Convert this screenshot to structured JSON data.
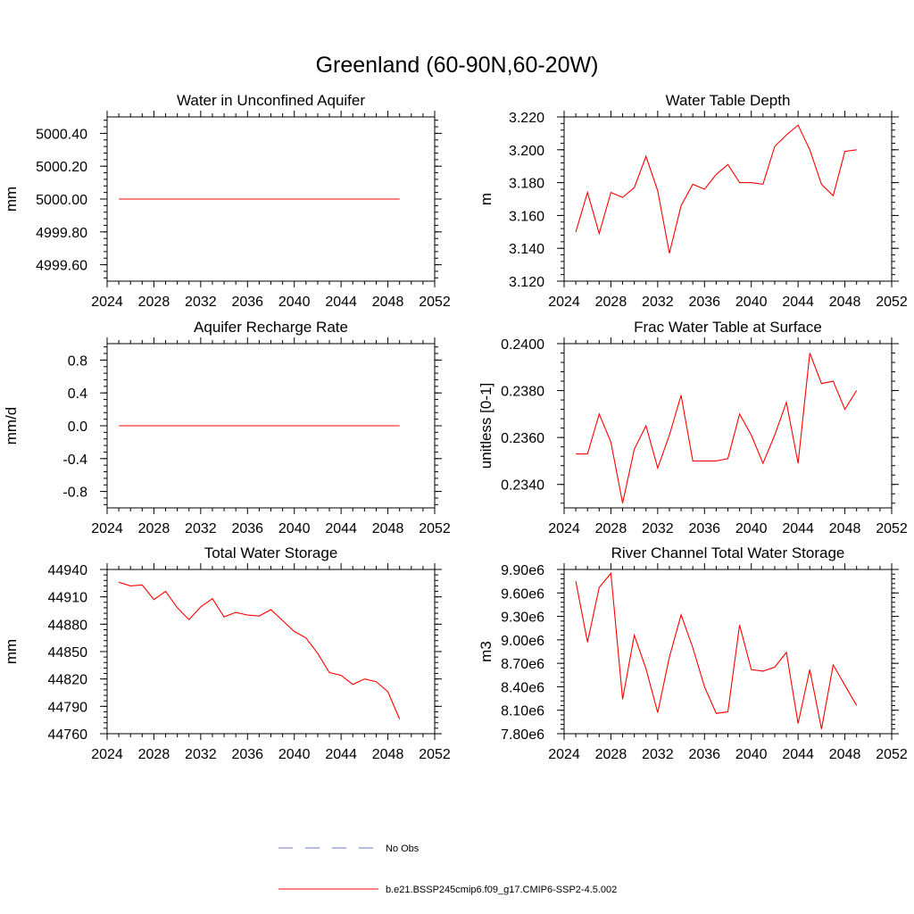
{
  "page": {
    "title": "Greenland (60-90N,60-20W)"
  },
  "colors": {
    "model": "#ff0000",
    "obs": "#6a7bd0",
    "axis": "#000000"
  },
  "chart_data": [
    {
      "id": "aquifer-water",
      "type": "line",
      "title": "Water in Unconfined Aquifer",
      "ylabel": "mm",
      "xlim": [
        2024,
        2052
      ],
      "ylim": [
        4999.5,
        5000.5
      ],
      "x_ticks": [
        "2024",
        "2028",
        "2032",
        "2036",
        "2040",
        "2044",
        "2048",
        "2052"
      ],
      "y_ticks": [
        4999.6,
        4999.8,
        5000.0,
        5000.2,
        5000.4
      ],
      "y_tick_labels": [
        "4999.60",
        "4999.80",
        "5000.00",
        "5000.20",
        "5000.40"
      ],
      "series": [
        {
          "name": "b.e21.BSSP245cmip6.f09_g17.CMIP6-SSP2-4.5.002",
          "x": [
            2025,
            2026,
            2027,
            2028,
            2029,
            2030,
            2031,
            2032,
            2033,
            2034,
            2035,
            2036,
            2037,
            2038,
            2039,
            2040,
            2041,
            2042,
            2043,
            2044,
            2045,
            2046,
            2047,
            2048,
            2049
          ],
          "y": [
            5000,
            5000,
            5000,
            5000,
            5000,
            5000,
            5000,
            5000,
            5000,
            5000,
            5000,
            5000,
            5000,
            5000,
            5000,
            5000,
            5000,
            5000,
            5000,
            5000,
            5000,
            5000,
            5000,
            5000,
            5000
          ]
        }
      ]
    },
    {
      "id": "water-table-depth",
      "type": "line",
      "title": "Water Table Depth",
      "ylabel": "m",
      "xlim": [
        2024,
        2052
      ],
      "ylim": [
        3.12,
        3.22
      ],
      "x_ticks": [
        "2024",
        "2028",
        "2032",
        "2036",
        "2040",
        "2044",
        "2048",
        "2052"
      ],
      "y_ticks": [
        3.12,
        3.14,
        3.16,
        3.18,
        3.2,
        3.22
      ],
      "y_tick_labels": [
        "3.120",
        "3.140",
        "3.160",
        "3.180",
        "3.200",
        "3.220"
      ],
      "series": [
        {
          "name": "b.e21.BSSP245cmip6.f09_g17.CMIP6-SSP2-4.5.002",
          "x": [
            2025,
            2026,
            2027,
            2028,
            2029,
            2030,
            2031,
            2032,
            2033,
            2034,
            2035,
            2036,
            2037,
            2038,
            2039,
            2040,
            2041,
            2042,
            2043,
            2044,
            2045,
            2046,
            2047,
            2048,
            2049
          ],
          "y": [
            3.15,
            3.174,
            3.149,
            3.174,
            3.171,
            3.177,
            3.196,
            3.175,
            3.137,
            3.166,
            3.179,
            3.176,
            3.185,
            3.191,
            3.18,
            3.18,
            3.179,
            3.202,
            3.209,
            3.215,
            3.2,
            3.179,
            3.172,
            3.199,
            3.2
          ]
        }
      ]
    },
    {
      "id": "aquifer-recharge",
      "type": "line",
      "title": "Aquifer Recharge Rate",
      "ylabel": "mm/d",
      "xlim": [
        2024,
        2052
      ],
      "ylim": [
        -1.0,
        1.0
      ],
      "x_ticks": [
        "2024",
        "2028",
        "2032",
        "2036",
        "2040",
        "2044",
        "2048",
        "2052"
      ],
      "y_ticks": [
        -0.8,
        -0.4,
        0.0,
        0.4,
        0.8
      ],
      "y_tick_labels": [
        "-0.8",
        "-0.4",
        "0.0",
        "0.4",
        "0.8"
      ],
      "series": [
        {
          "name": "b.e21.BSSP245cmip6.f09_g17.CMIP6-SSP2-4.5.002",
          "x": [
            2025,
            2026,
            2027,
            2028,
            2029,
            2030,
            2031,
            2032,
            2033,
            2034,
            2035,
            2036,
            2037,
            2038,
            2039,
            2040,
            2041,
            2042,
            2043,
            2044,
            2045,
            2046,
            2047,
            2048,
            2049
          ],
          "y": [
            0,
            0,
            0,
            0,
            0,
            0,
            0,
            0,
            0,
            0,
            0,
            0,
            0,
            0,
            0,
            0,
            0,
            0,
            0,
            0,
            0,
            0,
            0,
            0,
            0
          ]
        }
      ]
    },
    {
      "id": "frac-water-table",
      "type": "line",
      "title": "Frac Water Table at Surface",
      "ylabel": "unitless [0-1]",
      "xlim": [
        2024,
        2052
      ],
      "ylim": [
        0.233,
        0.24
      ],
      "x_ticks": [
        "2024",
        "2028",
        "2032",
        "2036",
        "2040",
        "2044",
        "2048",
        "2052"
      ],
      "y_ticks": [
        0.234,
        0.236,
        0.238,
        0.24
      ],
      "y_tick_labels": [
        "0.2340",
        "0.2360",
        "0.2380",
        "0.2400"
      ],
      "series": [
        {
          "name": "b.e21.BSSP245cmip6.f09_g17.CMIP6-SSP2-4.5.002",
          "x": [
            2025,
            2026,
            2027,
            2028,
            2029,
            2030,
            2031,
            2032,
            2033,
            2034,
            2035,
            2036,
            2037,
            2038,
            2039,
            2040,
            2041,
            2042,
            2043,
            2044,
            2045,
            2046,
            2047,
            2048,
            2049
          ],
          "y": [
            0.2353,
            0.2353,
            0.237,
            0.2358,
            0.2332,
            0.2355,
            0.2365,
            0.2347,
            0.2361,
            0.2378,
            0.235,
            0.235,
            0.235,
            0.2351,
            0.237,
            0.2361,
            0.2349,
            0.2361,
            0.2375,
            0.2349,
            0.2396,
            0.2383,
            0.2384,
            0.2372,
            0.238
          ]
        }
      ]
    },
    {
      "id": "total-water-storage",
      "type": "line",
      "title": "Total Water Storage",
      "ylabel": "mm",
      "xlim": [
        2024,
        2052
      ],
      "ylim": [
        44760,
        44940
      ],
      "x_ticks": [
        "2024",
        "2028",
        "2032",
        "2036",
        "2040",
        "2044",
        "2048",
        "2052"
      ],
      "y_ticks": [
        44760,
        44790,
        44820,
        44850,
        44880,
        44910,
        44940
      ],
      "y_tick_labels": [
        "44760",
        "44790",
        "44820",
        "44850",
        "44880",
        "44910",
        "44940"
      ],
      "series": [
        {
          "name": "b.e21.BSSP245cmip6.f09_g17.CMIP6-SSP2-4.5.002",
          "x": [
            2025,
            2026,
            2027,
            2028,
            2029,
            2030,
            2031,
            2032,
            2033,
            2034,
            2035,
            2036,
            2037,
            2038,
            2039,
            2040,
            2041,
            2042,
            2043,
            2044,
            2045,
            2046,
            2047,
            2048,
            2049
          ],
          "y": [
            44926,
            44922,
            44923,
            44907,
            44916,
            44898,
            44885,
            44899,
            44908,
            44888,
            44893,
            44890,
            44889,
            44896,
            44884,
            44872,
            44865,
            44848,
            44827,
            44824,
            44814,
            44820,
            44817,
            44806,
            44776
          ]
        }
      ]
    },
    {
      "id": "river-channel-storage",
      "type": "line",
      "title": "River Channel Total Water Storage",
      "ylabel": "m3",
      "xlim": [
        2024,
        2052
      ],
      "ylim": [
        7800000,
        9900000
      ],
      "x_ticks": [
        "2024",
        "2028",
        "2032",
        "2036",
        "2040",
        "2044",
        "2048",
        "2052"
      ],
      "y_ticks": [
        7800000,
        8100000,
        8400000,
        8700000,
        9000000,
        9300000,
        9600000,
        9900000
      ],
      "y_tick_labels": [
        "7.80e6",
        "8.10e6",
        "8.40e6",
        "8.70e6",
        "9.00e6",
        "9.30e6",
        "9.60e6",
        "9.90e6"
      ],
      "series": [
        {
          "name": "b.e21.BSSP245cmip6.f09_g17.CMIP6-SSP2-4.5.002",
          "x": [
            2025,
            2026,
            2027,
            2028,
            2029,
            2030,
            2031,
            2032,
            2033,
            2034,
            2035,
            2036,
            2037,
            2038,
            2039,
            2040,
            2041,
            2042,
            2043,
            2044,
            2045,
            2046,
            2047,
            2048,
            2049
          ],
          "y": [
            9750000,
            8970000,
            9670000,
            9850000,
            8240000,
            9060000,
            8630000,
            8070000,
            8780000,
            9320000,
            8900000,
            8400000,
            8060000,
            8080000,
            9190000,
            8620000,
            8600000,
            8650000,
            8840000,
            7930000,
            8620000,
            7860000,
            8680000,
            8420000,
            8160000
          ]
        }
      ]
    }
  ],
  "legend": {
    "items": [
      {
        "label": "No Obs",
        "style": "dashed",
        "color": "#6a7bd0"
      },
      {
        "label": "b.e21.BSSP245cmip6.f09_g17.CMIP6-SSP2-4.5.002",
        "style": "solid",
        "color": "#ff0000"
      }
    ]
  }
}
